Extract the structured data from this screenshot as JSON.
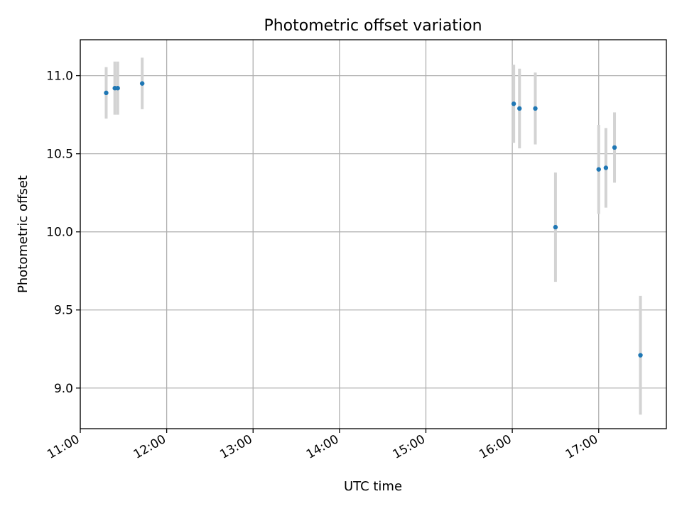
{
  "chart_data": {
    "type": "scatter",
    "title": "Photometric offset variation",
    "xlabel": "UTC time",
    "ylabel": "Photometric offset",
    "x_ticks": [
      "11:00",
      "12:00",
      "13:00",
      "14:00",
      "15:00",
      "16:00",
      "17:00"
    ],
    "y_ticks": [
      "9.0",
      "9.5",
      "10.0",
      "10.5",
      "11.0"
    ],
    "xlim": [
      "11:00",
      "17:47"
    ],
    "ylim": [
      8.74,
      11.23
    ],
    "grid": true,
    "marker_color": "#1f77b4",
    "errorbar_color": "#d3d3d3",
    "series": [
      {
        "points": [
          {
            "x": "11:18",
            "y": 10.89,
            "yerr": 0.165
          },
          {
            "x": "11:24",
            "y": 10.92,
            "yerr": 0.17
          },
          {
            "x": "11:26",
            "y": 10.92,
            "yerr": 0.17
          },
          {
            "x": "11:43",
            "y": 10.95,
            "yerr": 0.165
          },
          {
            "x": "16:01",
            "y": 10.82,
            "yerr": 0.25
          },
          {
            "x": "16:05",
            "y": 10.79,
            "yerr": 0.255
          },
          {
            "x": "16:16",
            "y": 10.79,
            "yerr": 0.23
          },
          {
            "x": "16:30",
            "y": 10.03,
            "yerr": 0.35
          },
          {
            "x": "17:00",
            "y": 10.4,
            "yerr": 0.285
          },
          {
            "x": "17:05",
            "y": 10.41,
            "yerr": 0.255
          },
          {
            "x": "17:11",
            "y": 10.54,
            "yerr": 0.225
          },
          {
            "x": "17:29",
            "y": 9.21,
            "yerr": 0.38
          }
        ]
      }
    ]
  }
}
